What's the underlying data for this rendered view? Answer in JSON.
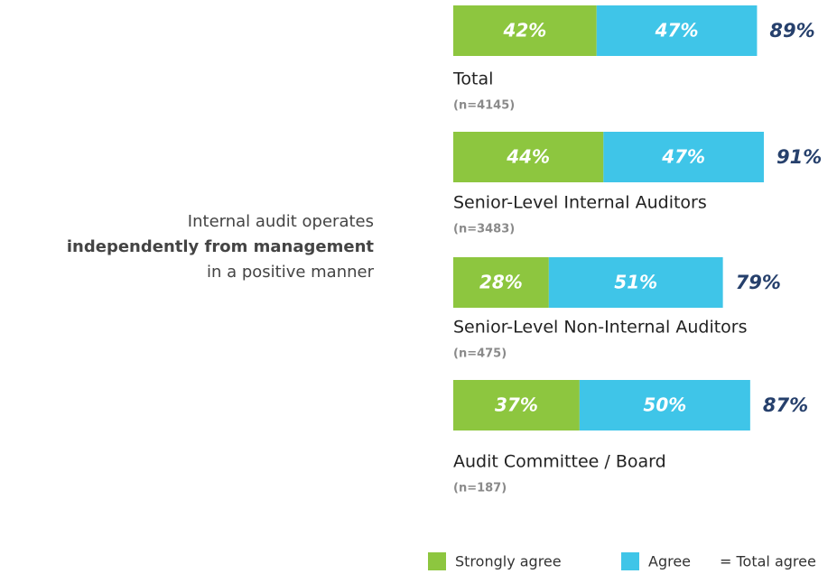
{
  "chart_data": {
    "type": "bar",
    "orientation": "horizontal",
    "stacked": true,
    "annotation": [
      "Internal audit operates",
      "independently from management",
      "in a positive manner"
    ],
    "categories": [
      "Total",
      "Senior-Level Internal Auditors",
      "Senior-Level Non-Internal Auditors",
      "Audit Committee / Board"
    ],
    "sample_sizes": [
      "(n=4145)",
      "(n=3483)",
      "(n=475)",
      "(n=187)"
    ],
    "series": [
      {
        "name": "Strongly agree",
        "color": "#8dc63f",
        "values": [
          42,
          44,
          28,
          37
        ],
        "value_labels": [
          "42%",
          "44%",
          "28%",
          "37%"
        ]
      },
      {
        "name": "Agree",
        "color": "#3fc5e8",
        "values": [
          47,
          47,
          51,
          50
        ],
        "value_labels": [
          "47%",
          "47%",
          "51%",
          "50%"
        ]
      }
    ],
    "totals": [
      89,
      91,
      79,
      87
    ],
    "total_labels": [
      "89%",
      "91%",
      "79%",
      "87%"
    ],
    "total_legend": "= Total agree",
    "total_color": "#26406c"
  }
}
